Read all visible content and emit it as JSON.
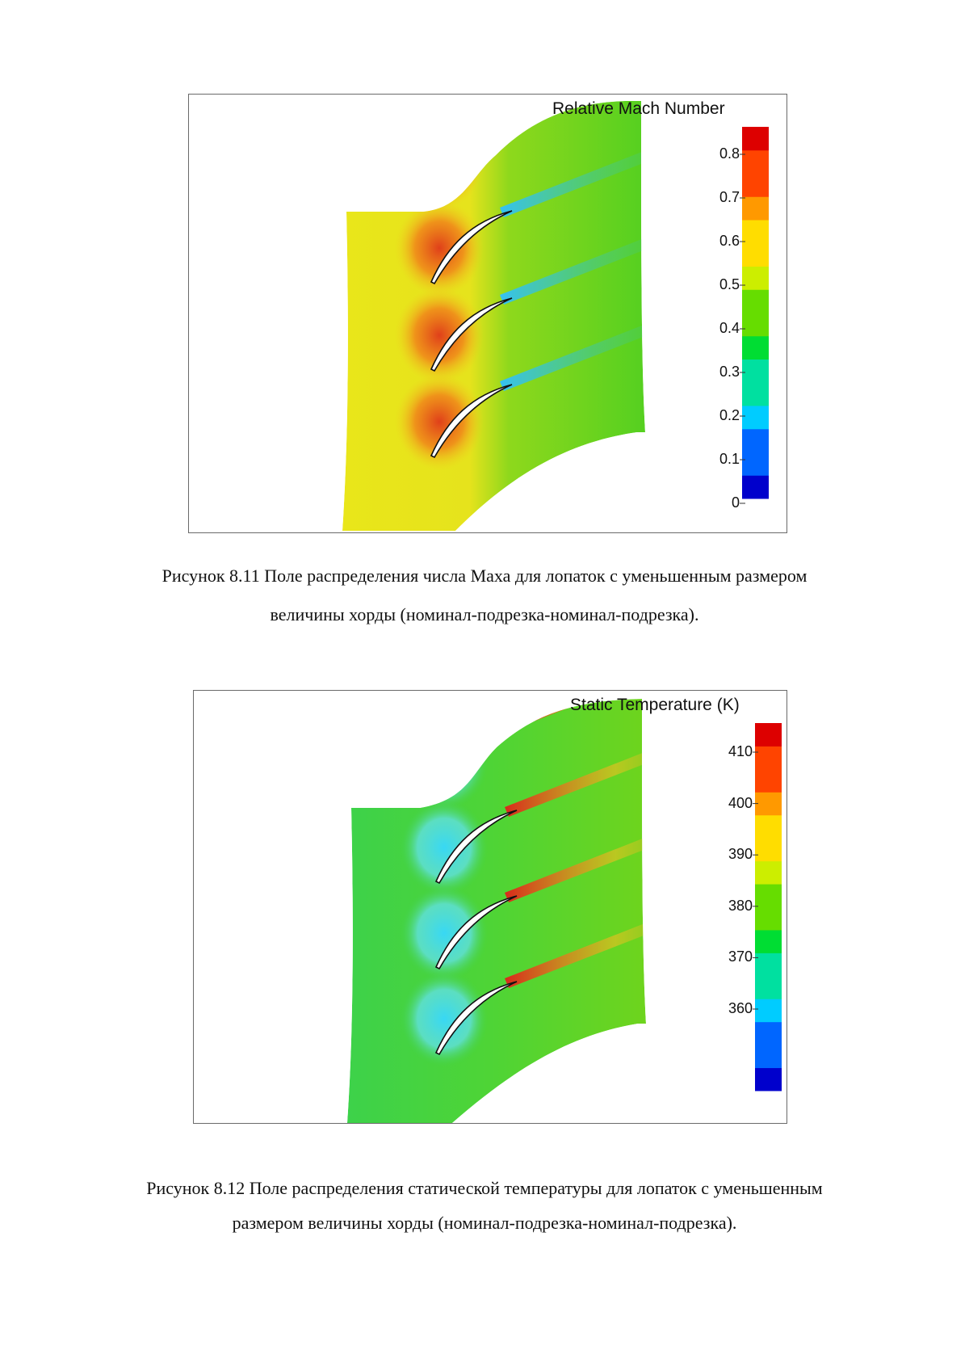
{
  "figures": [
    {
      "id": "mach",
      "legend_title": "Relative Mach Number",
      "ticks": [
        "0.8",
        "0.7",
        "0.6",
        "0.5",
        "0.4",
        "0.3",
        "0.2",
        "0.1",
        "0"
      ],
      "colors": {
        "inflow": "#e8e817",
        "passage": "#4fd11a",
        "suction_peak": "#e5501a",
        "wake": "#33c4e0"
      }
    },
    {
      "id": "temperature",
      "legend_title": "Static Temperature (K)",
      "ticks": [
        "410",
        "400",
        "390",
        "380",
        "370",
        "360"
      ],
      "colors": {
        "inflow": "#3fd24a",
        "passage": "#5fd41f",
        "suction_peak": "#35d8f0",
        "wake": "#e02a1a"
      }
    }
  ],
  "captions": {
    "fig_8_11_line1": "Рисунок 8.11 Поле распределения числа Маха для лопаток с уменьшенным размером",
    "fig_8_11_line2": "величины хорды (номинал-подрезка-номинал-подрезка).",
    "fig_8_12_line1": "Рисунок 8.12 Поле распределения статической температуры для лопаток с уменьшенным",
    "fig_8_12_line2": "размером величины хорды (номинал-подрезка-номинал-подрезка)."
  },
  "colorbar_stops": [
    "#0000cc",
    "#0066ff",
    "#00ccff",
    "#00e0a0",
    "#00dd33",
    "#66dd00",
    "#ccee00",
    "#ffdd00",
    "#ff9900",
    "#ff4400",
    "#dd0000"
  ]
}
